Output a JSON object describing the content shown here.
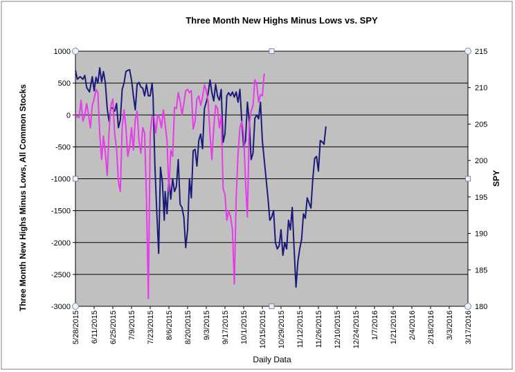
{
  "chart_data": {
    "type": "line",
    "title": "Three Month New Highs Minus Lows vs. SPY",
    "xlabel": "Daily Data",
    "ylabel": "Three Month New Highs Minus Lows, All Common Stocks",
    "y2label": "SPY",
    "ylim": [
      -3000,
      1000
    ],
    "y_ticks": [
      1000,
      500,
      0,
      -500,
      -1000,
      -1500,
      -2000,
      -2500,
      -3000
    ],
    "y2lim": [
      180,
      215
    ],
    "y2_ticks": [
      215,
      210,
      205,
      200,
      195,
      190,
      185,
      180
    ],
    "x_tick_labels": [
      "5/28/2015",
      "6/11/2015",
      "6/25/2015",
      "7/9/2015",
      "7/23/2015",
      "8/6/2015",
      "8/20/2015",
      "9/3/2015",
      "9/17/2015",
      "10/1/2015",
      "10/15/2015",
      "10/29/2015",
      "11/12/2015",
      "11/26/2015",
      "12/10/2015",
      "12/24/2015",
      "1/7/2016",
      "1/21/2016",
      "2/4/2016",
      "2/18/2016",
      "3/3/2016",
      "3/17/2016"
    ],
    "x_tick_rotated": true,
    "grid": true,
    "background": "#c0c0c0",
    "series": [
      {
        "color": "#1a1a7a",
        "axis": "left",
        "points": [
          [
            0,
            700
          ],
          [
            0.1,
            560
          ],
          [
            0.25,
            600
          ],
          [
            0.4,
            560
          ],
          [
            0.5,
            620
          ],
          [
            0.6,
            430
          ],
          [
            0.75,
            360
          ],
          [
            0.9,
            600
          ],
          [
            1.0,
            380
          ],
          [
            1.1,
            590
          ],
          [
            1.2,
            500
          ],
          [
            1.3,
            740
          ],
          [
            1.4,
            520
          ],
          [
            1.5,
            680
          ],
          [
            1.6,
            500
          ],
          [
            1.7,
            100
          ],
          [
            1.8,
            -100
          ],
          [
            1.9,
            120
          ],
          [
            2.0,
            100
          ],
          [
            2.1,
            60
          ],
          [
            2.2,
            180
          ],
          [
            2.3,
            -200
          ],
          [
            2.4,
            -80
          ],
          [
            2.5,
            400
          ],
          [
            2.6,
            500
          ],
          [
            2.7,
            680
          ],
          [
            2.8,
            700
          ],
          [
            2.9,
            710
          ],
          [
            3.0,
            550
          ],
          [
            3.1,
            300
          ],
          [
            3.2,
            80
          ],
          [
            3.3,
            480
          ],
          [
            3.4,
            510
          ],
          [
            3.5,
            440
          ],
          [
            3.6,
            420
          ],
          [
            3.7,
            300
          ],
          [
            3.8,
            480
          ],
          [
            3.9,
            300
          ],
          [
            4.0,
            300
          ],
          [
            4.1,
            500
          ],
          [
            4.15,
            300
          ],
          [
            4.25,
            -800
          ],
          [
            4.35,
            -1500
          ],
          [
            4.45,
            -2170
          ],
          [
            4.55,
            -820
          ],
          [
            4.65,
            -1050
          ],
          [
            4.75,
            -1650
          ],
          [
            4.8,
            -1200
          ],
          [
            4.9,
            -1550
          ],
          [
            5.0,
            -1000
          ],
          [
            5.1,
            -1320
          ],
          [
            5.2,
            -1000
          ],
          [
            5.3,
            -1200
          ],
          [
            5.4,
            -1120
          ],
          [
            5.5,
            -700
          ],
          [
            5.6,
            -1400
          ],
          [
            5.7,
            -1450
          ],
          [
            5.8,
            -1600
          ],
          [
            5.9,
            -2080
          ],
          [
            6.0,
            -1800
          ],
          [
            6.1,
            -1000
          ],
          [
            6.2,
            -1300
          ],
          [
            6.3,
            -560
          ],
          [
            6.4,
            -540
          ],
          [
            6.5,
            -800
          ],
          [
            6.6,
            -400
          ],
          [
            6.7,
            -300
          ],
          [
            6.8,
            -530
          ],
          [
            6.9,
            100
          ],
          [
            7.0,
            200
          ],
          [
            7.1,
            340
          ],
          [
            7.2,
            550
          ],
          [
            7.3,
            350
          ],
          [
            7.4,
            220
          ],
          [
            7.5,
            480
          ],
          [
            7.6,
            300
          ],
          [
            7.7,
            230
          ],
          [
            7.8,
            400
          ],
          [
            7.9,
            -430
          ],
          [
            8.0,
            -300
          ],
          [
            8.1,
            300
          ],
          [
            8.2,
            350
          ],
          [
            8.3,
            300
          ],
          [
            8.4,
            360
          ],
          [
            8.5,
            280
          ],
          [
            8.6,
            360
          ],
          [
            8.7,
            200
          ],
          [
            8.8,
            400
          ],
          [
            8.9,
            -100
          ],
          [
            9.0,
            -500
          ],
          [
            9.1,
            -400
          ],
          [
            9.2,
            200
          ],
          [
            9.3,
            -100
          ],
          [
            9.4,
            -700
          ],
          [
            9.5,
            -600
          ],
          [
            9.6,
            -50
          ],
          [
            9.7,
            0
          ],
          [
            9.8,
            -60
          ],
          [
            9.9,
            200
          ],
          [
            10.0,
            -400
          ],
          [
            10.1,
            -700
          ],
          [
            10.2,
            -1000
          ],
          [
            10.3,
            -1300
          ],
          [
            10.4,
            -1650
          ],
          [
            10.5,
            -1600
          ],
          [
            10.6,
            -1500
          ],
          [
            10.7,
            -2000
          ],
          [
            10.8,
            -2100
          ],
          [
            10.9,
            -2050
          ],
          [
            11.0,
            -1800
          ],
          [
            11.1,
            -2200
          ],
          [
            11.2,
            -2000
          ],
          [
            11.3,
            -2100
          ],
          [
            11.4,
            -1650
          ],
          [
            11.5,
            -1800
          ],
          [
            11.6,
            -1450
          ],
          [
            11.7,
            -2100
          ],
          [
            11.8,
            -2700
          ],
          [
            11.9,
            -2300
          ],
          [
            12.0,
            -2100
          ],
          [
            12.1,
            -1950
          ],
          [
            12.2,
            -1550
          ],
          [
            12.3,
            -1620
          ],
          [
            12.4,
            -1300
          ],
          [
            12.5,
            -1380
          ],
          [
            12.6,
            -1460
          ],
          [
            12.7,
            -1000
          ],
          [
            12.8,
            -680
          ],
          [
            12.9,
            -650
          ],
          [
            13.0,
            -880
          ],
          [
            13.1,
            -400
          ],
          [
            13.2,
            -420
          ],
          [
            13.3,
            -460
          ],
          [
            13.4,
            -180
          ]
        ]
      },
      {
        "color": "#e83aea",
        "axis": "left",
        "points": [
          [
            0,
            0
          ],
          [
            0.1,
            -30
          ],
          [
            0.2,
            -40
          ],
          [
            0.3,
            230
          ],
          [
            0.4,
            -100
          ],
          [
            0.5,
            0
          ],
          [
            0.6,
            180
          ],
          [
            0.7,
            0
          ],
          [
            0.8,
            -200
          ],
          [
            0.9,
            150
          ],
          [
            1.0,
            250
          ],
          [
            1.1,
            400
          ],
          [
            1.2,
            350
          ],
          [
            1.3,
            -300
          ],
          [
            1.4,
            -700
          ],
          [
            1.5,
            -330
          ],
          [
            1.6,
            -600
          ],
          [
            1.7,
            -950
          ],
          [
            1.8,
            -250
          ],
          [
            1.9,
            150
          ],
          [
            2.0,
            250
          ],
          [
            2.1,
            -300
          ],
          [
            2.2,
            -520
          ],
          [
            2.3,
            -1050
          ],
          [
            2.4,
            -1200
          ],
          [
            2.5,
            -200
          ],
          [
            2.6,
            80
          ],
          [
            2.7,
            -200
          ],
          [
            2.8,
            -650
          ],
          [
            2.9,
            -500
          ],
          [
            3.0,
            -200
          ],
          [
            3.1,
            -550
          ],
          [
            3.2,
            -70
          ],
          [
            3.3,
            60
          ],
          [
            3.4,
            -400
          ],
          [
            3.5,
            -600
          ],
          [
            3.6,
            -200
          ],
          [
            3.7,
            -280
          ],
          [
            3.8,
            -1300
          ],
          [
            3.9,
            -2880
          ],
          [
            4.0,
            -300
          ],
          [
            4.1,
            -20
          ],
          [
            4.2,
            -30
          ],
          [
            4.3,
            -280
          ],
          [
            4.4,
            0
          ],
          [
            4.5,
            -50
          ],
          [
            4.6,
            -200
          ],
          [
            4.7,
            80
          ],
          [
            4.8,
            -150
          ],
          [
            4.9,
            -400
          ],
          [
            5.0,
            -1200
          ],
          [
            5.1,
            -550
          ],
          [
            5.2,
            -650
          ],
          [
            5.3,
            120
          ],
          [
            5.4,
            100
          ],
          [
            5.5,
            350
          ],
          [
            5.6,
            220
          ],
          [
            5.7,
            0
          ],
          [
            5.8,
            180
          ],
          [
            5.9,
            380
          ],
          [
            6.0,
            400
          ],
          [
            6.1,
            350
          ],
          [
            6.2,
            380
          ],
          [
            6.3,
            -220
          ],
          [
            6.4,
            -100
          ],
          [
            6.5,
            250
          ],
          [
            6.6,
            300
          ],
          [
            6.7,
            150
          ],
          [
            6.8,
            280
          ],
          [
            6.9,
            470
          ],
          [
            7.0,
            380
          ],
          [
            7.1,
            200
          ],
          [
            7.2,
            -300
          ],
          [
            7.3,
            -700
          ],
          [
            7.4,
            -200
          ],
          [
            7.5,
            150
          ],
          [
            7.6,
            100
          ],
          [
            7.7,
            -200
          ],
          [
            7.8,
            0
          ],
          [
            7.9,
            -1150
          ],
          [
            8.0,
            -1250
          ],
          [
            8.1,
            -1650
          ],
          [
            8.2,
            -1500
          ],
          [
            8.3,
            -1600
          ],
          [
            8.4,
            -1800
          ],
          [
            8.5,
            -2650
          ],
          [
            8.6,
            -1300
          ],
          [
            8.7,
            -600
          ],
          [
            8.8,
            -200
          ],
          [
            8.9,
            -100
          ],
          [
            9.0,
            -300
          ],
          [
            9.1,
            -1050
          ],
          [
            9.2,
            -1600
          ],
          [
            9.3,
            -150
          ],
          [
            9.4,
            60
          ],
          [
            9.5,
            150
          ],
          [
            9.6,
            550
          ],
          [
            9.7,
            480
          ],
          [
            9.8,
            200
          ],
          [
            9.9,
            320
          ],
          [
            10.0,
            300
          ],
          [
            10.1,
            650
          ]
        ]
      }
    ]
  }
}
